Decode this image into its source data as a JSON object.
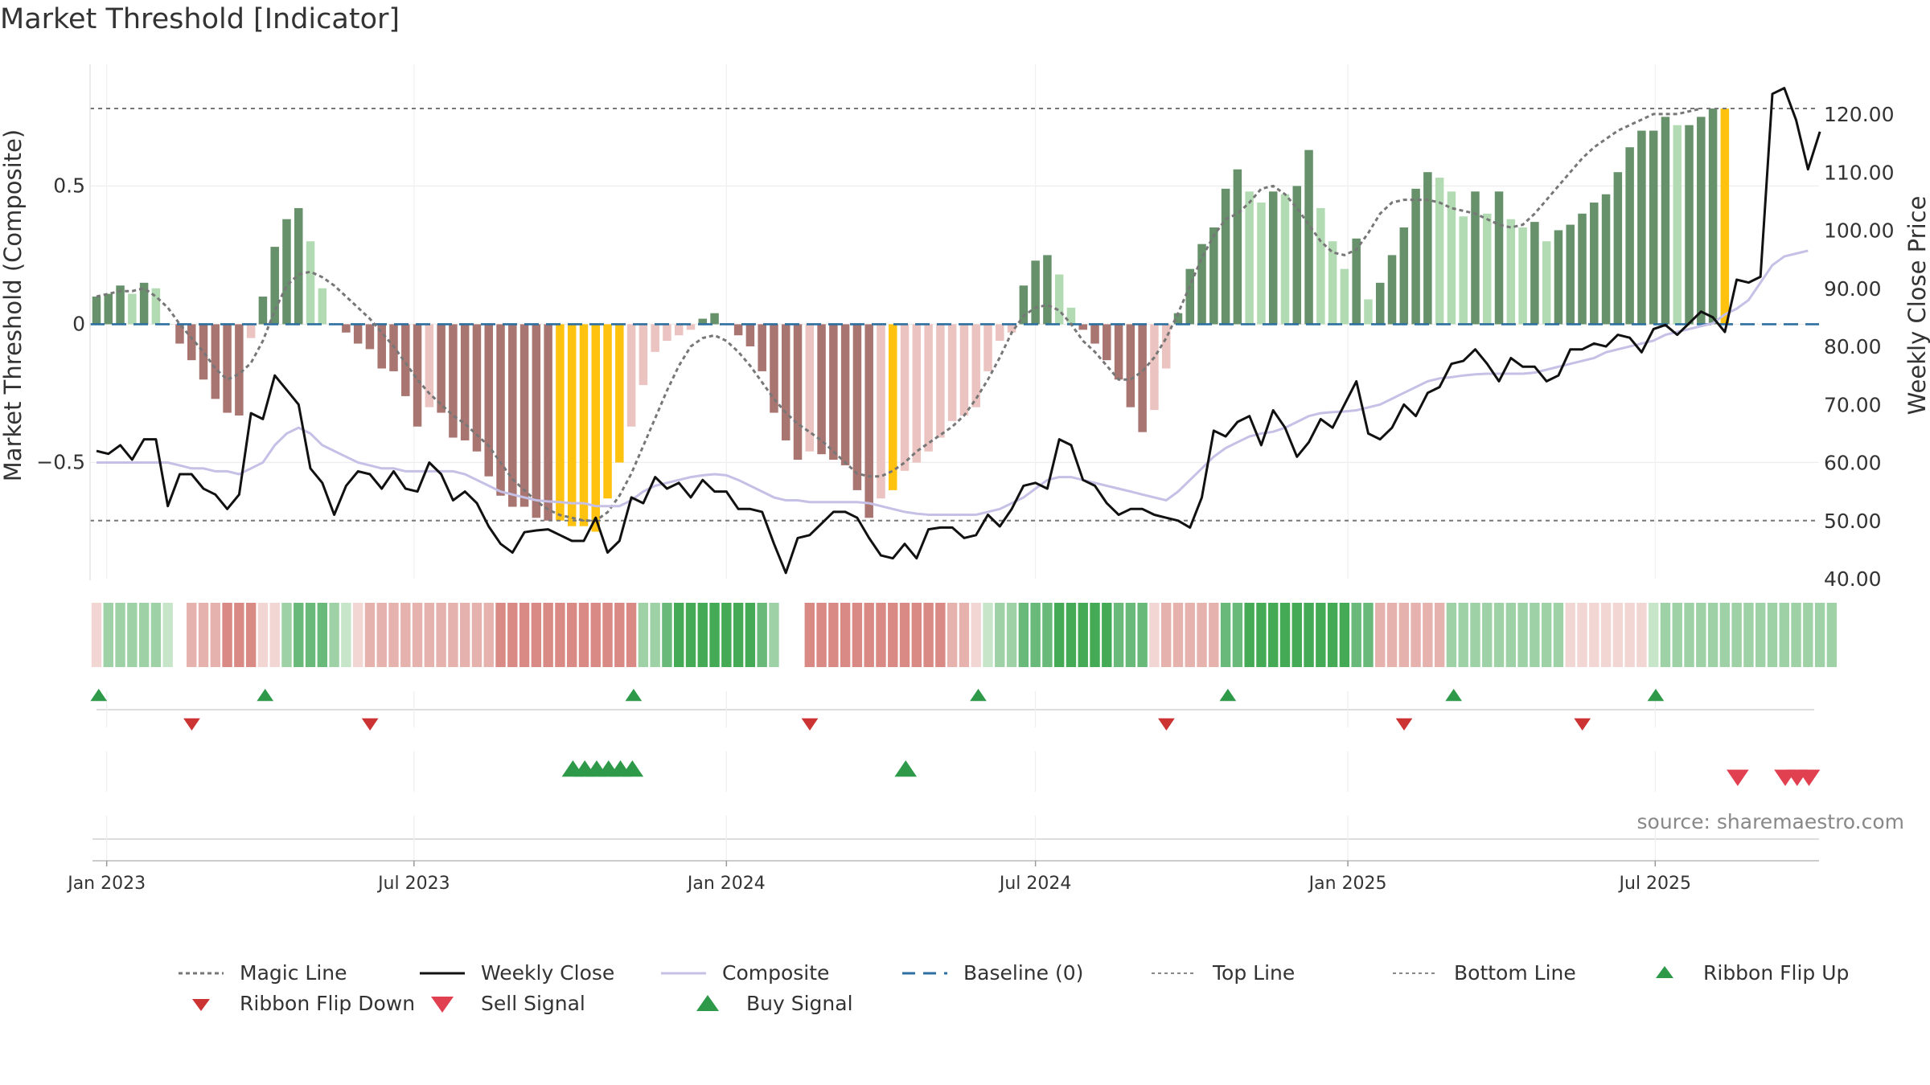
{
  "title": "Market Threshold [Indicator]",
  "source": "source: sharemaestro.com",
  "chart_data": {
    "type": "bar",
    "title": "Market Threshold [Indicator]",
    "ylabel_left": "Market Threshold (Composite)",
    "ylabel_right": "Weekly Close Price",
    "ylim_left": [
      -0.92,
      0.94
    ],
    "ylim_right": [
      40,
      128.6
    ],
    "left_ticks": [
      {
        "v": 0.5,
        "label": "0.5"
      },
      {
        "v": 0,
        "label": "0"
      },
      {
        "v": -0.5,
        "label": "−0.5"
      }
    ],
    "right_ticks": [
      {
        "v": 120,
        "label": "120.00"
      },
      {
        "v": 110,
        "label": "110.00"
      },
      {
        "v": 100,
        "label": "100.00"
      },
      {
        "v": 90,
        "label": "90.00"
      },
      {
        "v": 80,
        "label": "80.00"
      },
      {
        "v": 70,
        "label": "70.00"
      },
      {
        "v": 60,
        "label": "60.00"
      },
      {
        "v": 50,
        "label": "50.00"
      },
      {
        "v": 40,
        "label": "40.00"
      }
    ],
    "x_ticks": [
      "Jan 2023",
      "Jul 2023",
      "Jan 2024",
      "Jul 2024",
      "Jan 2025",
      "Jul 2025"
    ],
    "top_line": 0.78,
    "bottom_line": -0.71,
    "baseline": 0,
    "grid": true,
    "legend_placement": "bottom",
    "colors": {
      "bull_strong": "#66916a",
      "bull_weak": "#b3dbb3",
      "bear_strong": "#a97571",
      "bear_weak": "#ebc3c0",
      "extreme": "#ffc20e",
      "close": "#111111",
      "composite": "#c5c0e6",
      "magic": "#777777",
      "baseline": "#2d6f9f",
      "flip_up": "#2e9a49",
      "flip_down": "#cc3333",
      "sell": "#e04050",
      "buy": "#2e9a49"
    },
    "composite_bars": [
      0.1,
      0.11,
      0.14,
      0.11,
      0.15,
      0.13,
      0,
      -0.07,
      -0.13,
      -0.2,
      -0.27,
      -0.32,
      -0.33,
      -0.05,
      0.1,
      0.28,
      0.38,
      0.42,
      0.3,
      0.13,
      0,
      -0.03,
      -0.07,
      -0.09,
      -0.16,
      -0.17,
      -0.26,
      -0.37,
      -0.3,
      -0.32,
      -0.41,
      -0.42,
      -0.46,
      -0.55,
      -0.62,
      -0.66,
      -0.66,
      -0.7,
      -0.71,
      -0.71,
      -0.73,
      -0.73,
      -0.75,
      -0.63,
      -0.5,
      -0.37,
      -0.22,
      -0.1,
      -0.06,
      -0.04,
      -0.02,
      0.02,
      0.04,
      0,
      -0.04,
      -0.08,
      -0.17,
      -0.32,
      -0.42,
      -0.49,
      -0.46,
      -0.47,
      -0.49,
      -0.51,
      -0.6,
      -0.7,
      -0.63,
      -0.6,
      -0.53,
      -0.5,
      -0.46,
      -0.41,
      -0.35,
      -0.33,
      -0.3,
      -0.17,
      -0.06,
      -0.03,
      0.14,
      0.23,
      0.25,
      0.18,
      0.06,
      -0.02,
      -0.07,
      -0.13,
      -0.2,
      -0.3,
      -0.39,
      -0.31,
      -0.16,
      0.04,
      0.2,
      0.29,
      0.35,
      0.49,
      0.56,
      0.48,
      0.44,
      0.48,
      0.47,
      0.5,
      0.63,
      0.42,
      0.3,
      0.2,
      0.31,
      0.09,
      0.15,
      0.25,
      0.35,
      0.49,
      0.55,
      0.53,
      0.48,
      0.39,
      0.48,
      0.4,
      0.48,
      0.38,
      0.35,
      0.37,
      0.3,
      0.34,
      0.36,
      0.4,
      0.44,
      0.47,
      0.55,
      0.64,
      0.7,
      0.7,
      0.75,
      0.72,
      0.72,
      0.75,
      0.78,
      0.78
    ],
    "extreme_weeks": [
      33,
      34,
      35,
      36,
      37,
      38,
      39,
      40,
      41,
      42,
      43,
      45,
      46,
      47,
      48,
      49,
      50,
      51,
      52,
      53,
      54,
      55,
      56,
      57,
      58,
      59,
      60,
      61,
      62,
      63,
      64,
      65,
      66,
      67,
      68,
      69,
      70,
      71,
      72,
      73,
      74,
      75,
      76,
      77,
      78,
      79,
      80,
      81,
      82,
      83,
      84,
      85,
      86,
      87,
      88,
      89,
      90,
      91,
      92,
      93,
      94,
      95,
      96,
      97,
      98,
      99,
      100,
      101,
      102,
      103,
      104,
      105,
      106,
      107,
      108,
      109,
      110,
      111,
      112,
      113,
      114,
      115,
      116,
      117,
      118,
      119,
      120,
      121,
      122,
      123,
      124,
      125,
      126,
      127,
      128,
      129,
      130,
      131,
      132,
      133,
      134,
      135,
      136,
      137,
      138,
      139,
      140,
      141,
      142
    ],
    "extreme_list": [
      39,
      40,
      41,
      42,
      43,
      44,
      67,
      137,
      141,
      142,
      143
    ],
    "magic_line": [
      0.1,
      0.11,
      0.12,
      0.12,
      0.13,
      0.1,
      0.06,
      0,
      -0.05,
      -0.1,
      -0.16,
      -0.2,
      -0.18,
      -0.14,
      -0.06,
      0.05,
      0.14,
      0.18,
      0.19,
      0.17,
      0.14,
      0.1,
      0.06,
      0.02,
      -0.03,
      -0.08,
      -0.14,
      -0.2,
      -0.25,
      -0.29,
      -0.33,
      -0.36,
      -0.4,
      -0.44,
      -0.5,
      -0.56,
      -0.6,
      -0.64,
      -0.67,
      -0.69,
      -0.7,
      -0.71,
      -0.71,
      -0.68,
      -0.62,
      -0.54,
      -0.44,
      -0.34,
      -0.24,
      -0.15,
      -0.08,
      -0.05,
      -0.04,
      -0.06,
      -0.1,
      -0.15,
      -0.21,
      -0.27,
      -0.32,
      -0.36,
      -0.39,
      -0.42,
      -0.46,
      -0.5,
      -0.54,
      -0.55,
      -0.55,
      -0.53,
      -0.5,
      -0.46,
      -0.43,
      -0.4,
      -0.37,
      -0.33,
      -0.27,
      -0.2,
      -0.12,
      -0.03,
      0.03,
      0.06,
      0.07,
      0.05,
      0,
      -0.06,
      -0.1,
      -0.15,
      -0.2,
      -0.2,
      -0.17,
      -0.12,
      -0.05,
      0.04,
      0.14,
      0.24,
      0.32,
      0.38,
      0.4,
      0.44,
      0.49,
      0.5,
      0.47,
      0.42,
      0.36,
      0.3,
      0.26,
      0.25,
      0.27,
      0.33,
      0.4,
      0.44,
      0.45,
      0.45,
      0.45,
      0.44,
      0.42,
      0.41,
      0.4,
      0.38,
      0.36,
      0.35,
      0.36,
      0.4,
      0.45,
      0.5,
      0.55,
      0.6,
      0.64,
      0.67,
      0.7,
      0.72,
      0.74,
      0.76,
      0.76,
      0.76,
      0.77,
      0.78
    ],
    "weekly_close": [
      62,
      61.5,
      63,
      60.5,
      64,
      64,
      52.5,
      58,
      58,
      55.5,
      54.5,
      52,
      54.5,
      68.5,
      67.5,
      75,
      72.5,
      70,
      59,
      56.5,
      51,
      56,
      58.5,
      58,
      55.5,
      58.5,
      55.5,
      55,
      60,
      58,
      53.5,
      55,
      53,
      49,
      46,
      44.5,
      48,
      48.3,
      48.5,
      47.5,
      46.5,
      46.5,
      50.5,
      44.5,
      46.5,
      54,
      53,
      57.5,
      55.5,
      56.5,
      54,
      57,
      55,
      55,
      52,
      52,
      51.5,
      46,
      41,
      47,
      47.5,
      49.5,
      51.5,
      51.5,
      50.5,
      47,
      44,
      43.5,
      46,
      43.5,
      48.5,
      48.8,
      48.8,
      47,
      47.5,
      51,
      49,
      52,
      56,
      56.5,
      55.5,
      64,
      63,
      57,
      56,
      53,
      51,
      52,
      52,
      51,
      50.5,
      50,
      48.8,
      54,
      65.5,
      64.5,
      67,
      68,
      63,
      69,
      66,
      61,
      63.5,
      67.5,
      66,
      70,
      74,
      65,
      64,
      66,
      70,
      68,
      72,
      73,
      77,
      77.5,
      79.5,
      77,
      74,
      78,
      76.5,
      76.5,
      74,
      75,
      79.5,
      79.5,
      80.5,
      80,
      82,
      81.5,
      79,
      83,
      83.7,
      82,
      84,
      86,
      85,
      82.5,
      91.5,
      91,
      92,
      123.5,
      124.5,
      119,
      110.5,
      117
    ],
    "composite_line": [
      60,
      60,
      60,
      60,
      60,
      60,
      60,
      59.5,
      59,
      59,
      58.5,
      58.5,
      58,
      59,
      60,
      63,
      65,
      66,
      65,
      63,
      62,
      61,
      60,
      59.5,
      59,
      59,
      58.5,
      58.5,
      58.5,
      58.5,
      58.5,
      58,
      57,
      56,
      55,
      54.5,
      54,
      53.5,
      53.3,
      53.2,
      53,
      53,
      52.5,
      52.5,
      52.5,
      53.5,
      55,
      56,
      56.5,
      57,
      57.5,
      57.8,
      58,
      57.8,
      57,
      56,
      55,
      54,
      53.5,
      53.5,
      53.2,
      53.2,
      53.2,
      53.2,
      53.2,
      53,
      52.5,
      52,
      51.5,
      51.2,
      51,
      51,
      51,
      51,
      51,
      51.5,
      52,
      53,
      54,
      55.5,
      57,
      57.5,
      57.5,
      57,
      56.5,
      56,
      55.5,
      55,
      54.5,
      54,
      53.5,
      55,
      57,
      59,
      61,
      62.5,
      63.5,
      64.5,
      65,
      65.3,
      66,
      67,
      68,
      68.5,
      68.7,
      68.8,
      69,
      69.5,
      70,
      71,
      72,
      73,
      74,
      74.5,
      74.7,
      75,
      75.2,
      75.3,
      75.3,
      75.3,
      75.3,
      75.5,
      76,
      76.5,
      77,
      77.5,
      78,
      79,
      79.5,
      80,
      80.5,
      81,
      82,
      82.5,
      83,
      83.5,
      84,
      85.5,
      86.5,
      88,
      91,
      94,
      95.5,
      96,
      96.5
    ],
    "ribbon_levels": [
      -1,
      2,
      2,
      2,
      2,
      2,
      1,
      0,
      -2,
      -2,
      -2,
      -3,
      -3,
      -3,
      -1,
      -1,
      2,
      3,
      3,
      3,
      2,
      1,
      -1,
      -2,
      -2,
      -2,
      -2,
      -2,
      -2,
      -2,
      -2,
      -2,
      -2,
      -2,
      -3,
      -3,
      -3,
      -3,
      -3,
      -3,
      -3,
      -3,
      -3,
      -3,
      -3,
      -3,
      2,
      2,
      3,
      4,
      4,
      4,
      4,
      4,
      4,
      4,
      3,
      2,
      0,
      0,
      -3,
      -3,
      -3,
      -3,
      -3,
      -3,
      -3,
      -3,
      -3,
      -3,
      -3,
      -3,
      -2,
      -2,
      -1,
      1,
      2,
      2,
      3,
      3,
      3,
      4,
      4,
      4,
      4,
      4,
      3,
      3,
      3,
      -1,
      -2,
      -2,
      -2,
      -2,
      -2,
      3,
      3,
      4,
      4,
      4,
      4,
      4,
      4,
      4,
      4,
      4,
      3,
      3,
      -2,
      -2,
      -2,
      -2,
      -2,
      -2,
      2,
      2,
      2,
      2,
      2,
      2,
      2,
      2,
      2,
      2,
      -1,
      -1,
      -1,
      -1,
      -1,
      -1,
      -1,
      1,
      2,
      2,
      2,
      2,
      2,
      2,
      2,
      2,
      2,
      2,
      2,
      2,
      2,
      2,
      2
    ],
    "x_start": "2022-12-26",
    "ribbon_flip_up": [
      1,
      15,
      46,
      75,
      96,
      115,
      132
    ],
    "ribbon_flip_down": [
      7,
      22,
      59,
      89,
      109,
      124
    ],
    "buy_signals": [
      39,
      40,
      41,
      42,
      43,
      44,
      67
    ],
    "sell_signals": [
      137,
      141,
      142,
      143
    ]
  },
  "legend": [
    {
      "label": "Magic Line",
      "kind": "dotted",
      "color": "#777777"
    },
    {
      "label": "Weekly Close",
      "kind": "solid",
      "color": "#111111"
    },
    {
      "label": "Composite",
      "kind": "solid",
      "color": "#c5c0e6"
    },
    {
      "label": "Baseline (0)",
      "kind": "dashed",
      "color": "#2d6f9f"
    },
    {
      "label": "Top Line",
      "kind": "dotted-light",
      "color": "#888888"
    },
    {
      "label": "Bottom Line",
      "kind": "dotted-light",
      "color": "#888888"
    },
    {
      "label": "Ribbon Flip Up",
      "kind": "tri-up",
      "color": "#2e9a49"
    },
    {
      "label": "Ribbon Flip Down",
      "kind": "tri-down",
      "color": "#cc3333"
    },
    {
      "label": "Sell Signal",
      "kind": "tri-down-big",
      "color": "#e04050"
    },
    {
      "label": "Buy Signal",
      "kind": "tri-up-big",
      "color": "#2e9a49"
    }
  ]
}
